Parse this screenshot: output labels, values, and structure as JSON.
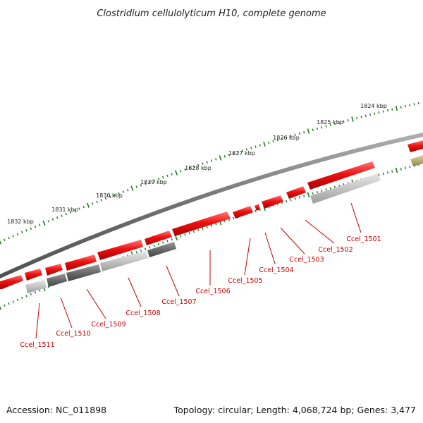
{
  "header": {
    "title": "Clostridium cellulolyticum H10, complete genome"
  },
  "footer": {
    "accession": "Accession: NC_011898",
    "summary": "Topology: circular; Length: 4,068,724 bp; Genes: 3,477"
  },
  "colors": {
    "gene_forward": "#ee1111",
    "gene_dark": "#666666",
    "gene_light": "#c4c4c4",
    "gene_olive": "#b8b070",
    "backbone": "#7a7a7a",
    "tick": "#1f7a1f",
    "label": "#cc0000"
  },
  "ruler": {
    "unit_labels": [
      "1824 kbp",
      "1825 kbp",
      "1826 kbp",
      "1827 kbp",
      "1828 kbp",
      "1829 kbp",
      "1830 kbp",
      "1831 kbp",
      "1832 kbp"
    ]
  },
  "genes": {
    "labels": [
      "Ccel_1501",
      "Ccel_1502",
      "Ccel_1503",
      "Ccel_1504",
      "Ccel_1505",
      "Ccel_1506",
      "Ccel_1507",
      "Ccel_1508",
      "Ccel_1509",
      "Ccel_1510",
      "Ccel_1511"
    ]
  }
}
